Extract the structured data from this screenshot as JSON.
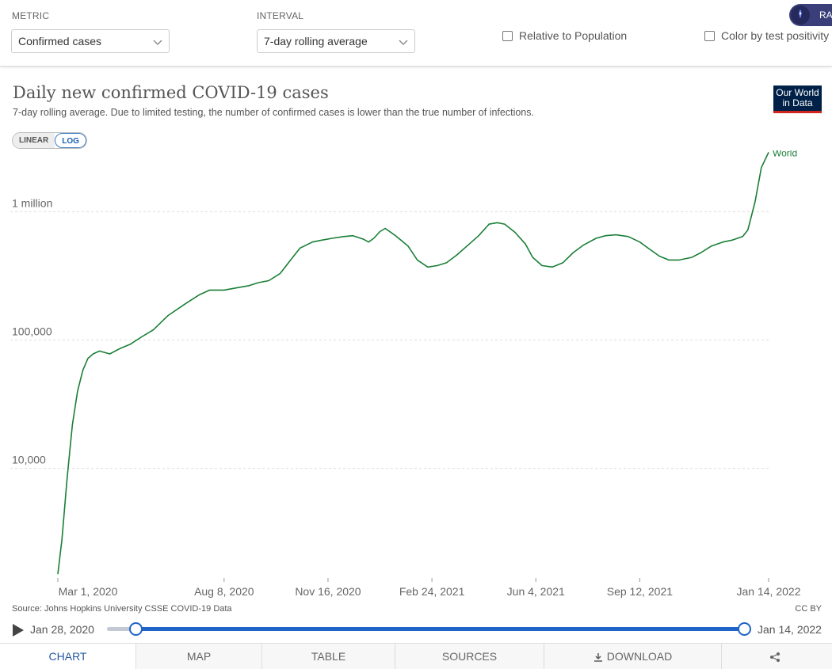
{
  "controls": {
    "metric_label": "METRIC",
    "metric_value": "Confirmed cases",
    "interval_label": "INTERVAL",
    "interval_value": "7-day rolling average",
    "relative_label": "Relative to Population",
    "color_label": "Color by test positivity",
    "rapid_label": "RA"
  },
  "chart": {
    "title": "Daily new confirmed COVID-19 cases",
    "subtitle": "7-day rolling average. Due to limited testing, the number of confirmed cases is lower than the true number of infections.",
    "logo_line1": "Our World",
    "logo_line2": "in Data",
    "scale_linear": "LINEAR",
    "scale_log": "LOG",
    "source": "Source: Johns Hopkins University CSSE COVID-19 Data",
    "license": "CC BY"
  },
  "timeline": {
    "start": "Jan 28, 2020",
    "end": "Jan 14, 2022"
  },
  "tabs": [
    "CHART",
    "MAP",
    "TABLE",
    "SOURCES",
    "DOWNLOAD",
    ""
  ],
  "colors": {
    "series": "#1a7f37",
    "accent": "#1f64c8"
  },
  "chart_data": {
    "type": "line",
    "title": "Daily new confirmed COVID-19 cases",
    "subtitle": "7-day rolling average. Due to limited testing, the number of confirmed cases is lower than the true number of infections.",
    "yscale": "log",
    "ylim": [
      1400,
      3000000
    ],
    "y_ticks": [
      10000,
      100000,
      1000000
    ],
    "y_tick_labels": [
      "10,000",
      "100,000",
      "1 million"
    ],
    "x_tick_labels": [
      "Mar 1, 2020",
      "Aug 8, 2020",
      "Nov 16, 2020",
      "Feb 24, 2021",
      "Jun 4, 2021",
      "Sep 12, 2021",
      "Jan 14, 2022"
    ],
    "x_ticks": [
      "2020-03-01",
      "2020-08-08",
      "2020-11-16",
      "2021-02-24",
      "2021-06-04",
      "2021-09-12",
      "2022-01-14"
    ],
    "grid": true,
    "series": [
      {
        "name": "World",
        "x": [
          "2020-03-01",
          "2020-03-05",
          "2020-03-10",
          "2020-03-15",
          "2020-03-20",
          "2020-03-25",
          "2020-03-30",
          "2020-04-04",
          "2020-04-10",
          "2020-04-20",
          "2020-04-30",
          "2020-05-10",
          "2020-05-20",
          "2020-06-01",
          "2020-06-15",
          "2020-07-01",
          "2020-07-15",
          "2020-07-25",
          "2020-08-08",
          "2020-08-20",
          "2020-09-01",
          "2020-09-10",
          "2020-09-20",
          "2020-10-01",
          "2020-10-10",
          "2020-10-20",
          "2020-11-01",
          "2020-11-10",
          "2020-11-20",
          "2020-12-01",
          "2020-12-10",
          "2020-12-20",
          "2020-12-25",
          "2020-12-30",
          "2021-01-05",
          "2021-01-10",
          "2021-01-20",
          "2021-02-01",
          "2021-02-10",
          "2021-02-20",
          "2021-03-01",
          "2021-03-10",
          "2021-03-20",
          "2021-04-01",
          "2021-04-10",
          "2021-04-20",
          "2021-04-28",
          "2021-05-05",
          "2021-05-15",
          "2021-05-25",
          "2021-06-01",
          "2021-06-10",
          "2021-06-20",
          "2021-06-30",
          "2021-07-10",
          "2021-07-20",
          "2021-08-01",
          "2021-08-10",
          "2021-08-20",
          "2021-09-01",
          "2021-09-12",
          "2021-09-20",
          "2021-10-01",
          "2021-10-10",
          "2021-10-20",
          "2021-11-01",
          "2021-11-10",
          "2021-11-20",
          "2021-12-01",
          "2021-12-10",
          "2021-12-20",
          "2021-12-25",
          "2022-01-01",
          "2022-01-07",
          "2022-01-14"
        ],
        "y": [
          1500,
          2800,
          8500,
          22000,
          40000,
          58000,
          72000,
          78000,
          82000,
          78000,
          86000,
          93000,
          105000,
          120000,
          155000,
          190000,
          225000,
          245000,
          245000,
          255000,
          265000,
          280000,
          290000,
          330000,
          410000,
          520000,
          580000,
          600000,
          620000,
          640000,
          650000,
          610000,
          580000,
          620000,
          700000,
          740000,
          650000,
          540000,
          420000,
          370000,
          380000,
          400000,
          460000,
          560000,
          650000,
          800000,
          820000,
          800000,
          690000,
          560000,
          440000,
          380000,
          370000,
          400000,
          480000,
          550000,
          620000,
          650000,
          660000,
          640000,
          580000,
          520000,
          450000,
          420000,
          420000,
          440000,
          480000,
          540000,
          580000,
          600000,
          640000,
          720000,
          1200000,
          2200000,
          2900000
        ]
      }
    ]
  }
}
